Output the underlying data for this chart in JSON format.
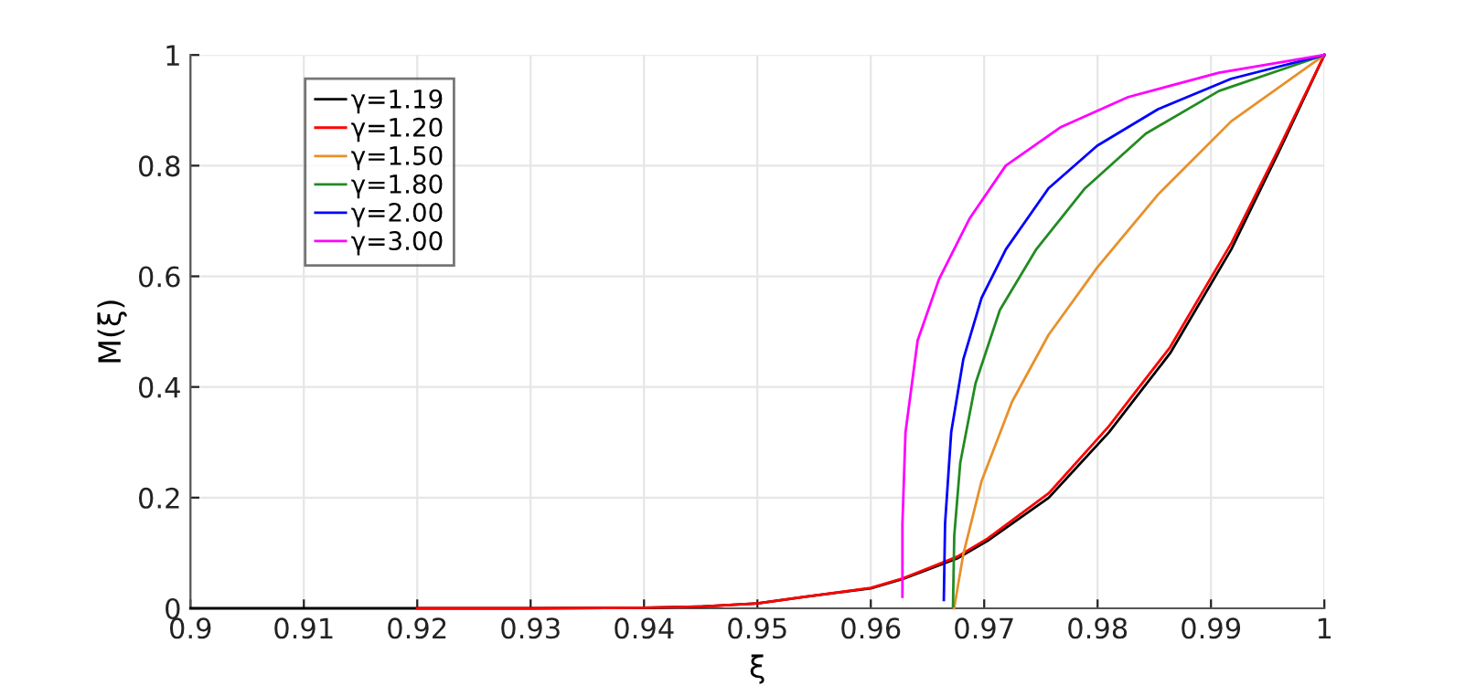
{
  "chart_data": {
    "type": "line",
    "xlabel": "ξ",
    "ylabel": "M(ξ)",
    "xlim": [
      0.9,
      1
    ],
    "ylim": [
      0,
      1
    ],
    "xticks": [
      {
        "value": 0.9,
        "label": "0.9"
      },
      0.91,
      0.92,
      0.93,
      0.94,
      0.95,
      0.96,
      0.97,
      0.98,
      0.99,
      {
        "value": 1,
        "label": "1"
      }
    ],
    "yticks": [
      0,
      0.2,
      0.4,
      0.6,
      0.8,
      1
    ],
    "grid": true,
    "legend": "top left",
    "marker": "none",
    "line_style": "solid",
    "series": [
      {
        "name": "γ=1.19",
        "color": "#000000",
        "x": [
          0.9,
          0.93,
          0.94,
          0.945,
          0.95,
          0.9542,
          0.96,
          0.9628,
          0.9676,
          0.9703,
          0.9757,
          0.981,
          0.9864,
          0.9918,
          0.9961,
          1.0
        ],
        "values": [
          0,
          0,
          0.001,
          0.003,
          0.009,
          0.021,
          0.036,
          0.053,
          0.09,
          0.122,
          0.2,
          0.318,
          0.461,
          0.649,
          0.83,
          1.0
        ]
      },
      {
        "name": "γ=1.20",
        "color": "#ff0000",
        "x": [
          0.92,
          0.93,
          0.94,
          0.945,
          0.95,
          0.9542,
          0.96,
          0.9628,
          0.9676,
          0.9703,
          0.9757,
          0.981,
          0.9864,
          0.9918,
          0.9961,
          1.0
        ],
        "values": [
          0,
          0,
          0.001,
          0.003,
          0.009,
          0.021,
          0.037,
          0.054,
          0.093,
          0.126,
          0.208,
          0.329,
          0.472,
          0.66,
          0.836,
          1.0
        ]
      },
      {
        "name": "γ=1.50",
        "color": "#e8902a",
        "x": [
          0.96735,
          0.96816,
          0.96977,
          0.97245,
          0.97567,
          0.97997,
          0.98534,
          0.99178,
          1.0
        ],
        "values": [
          0,
          0.098,
          0.23,
          0.373,
          0.494,
          0.616,
          0.748,
          0.88,
          1.0
        ]
      },
      {
        "name": "γ=1.80",
        "color": "#228b22",
        "x": [
          0.96725,
          0.96736,
          0.96789,
          0.96923,
          0.97138,
          0.9746,
          0.97889,
          0.98426,
          0.9907,
          1.0
        ],
        "values": [
          0.004,
          0.131,
          0.263,
          0.406,
          0.539,
          0.649,
          0.759,
          0.858,
          0.935,
          1.0
        ]
      },
      {
        "name": "γ=2.00",
        "color": "#0000ff",
        "x": [
          0.96644,
          0.96655,
          0.96709,
          0.96816,
          0.96977,
          0.97192,
          0.97567,
          0.97997,
          0.98534,
          0.99178,
          1.0
        ],
        "values": [
          0.015,
          0.153,
          0.318,
          0.45,
          0.561,
          0.649,
          0.759,
          0.836,
          0.902,
          0.957,
          1.0
        ]
      },
      {
        "name": "γ=3.00",
        "color": "#ff00ff",
        "x": [
          0.96279,
          0.96279,
          0.96306,
          0.96413,
          0.966,
          0.9687,
          0.9719,
          0.9767,
          0.9827,
          0.9907,
          1.0
        ],
        "values": [
          0.021,
          0.153,
          0.318,
          0.484,
          0.594,
          0.704,
          0.8,
          0.869,
          0.924,
          0.968,
          1.0
        ]
      }
    ]
  }
}
